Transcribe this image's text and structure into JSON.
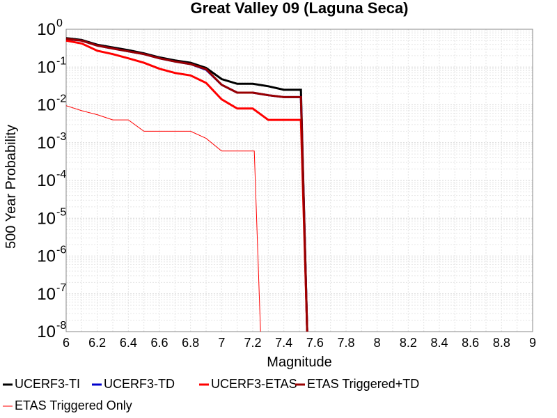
{
  "chart_data": {
    "type": "line",
    "title": "Great Valley 09 (Laguna Seca)",
    "xlabel": "Magnitude",
    "ylabel": "500 Year Probability",
    "xlim": [
      6,
      9
    ],
    "ylim": [
      1e-08,
      1
    ],
    "yscale": "log",
    "grid": true,
    "legend_position": "bottom",
    "x_ticks": [
      "6",
      "6.2",
      "6.4",
      "6.6",
      "6.8",
      "7",
      "7.2",
      "7.4",
      "7.6",
      "7.8",
      "8",
      "8.2",
      "8.4",
      "8.6",
      "8.8",
      "9"
    ],
    "y_ticks": [
      {
        "base": "10",
        "exp": "0",
        "value": 1
      },
      {
        "base": "10",
        "exp": "-1",
        "value": 0.1
      },
      {
        "base": "10",
        "exp": "-2",
        "value": 0.01
      },
      {
        "base": "10",
        "exp": "-3",
        "value": 0.001
      },
      {
        "base": "10",
        "exp": "-4",
        "value": 0.0001
      },
      {
        "base": "10",
        "exp": "-5",
        "value": 1e-05
      },
      {
        "base": "10",
        "exp": "-6",
        "value": 1e-06
      },
      {
        "base": "10",
        "exp": "-7",
        "value": 1e-07
      },
      {
        "base": "10",
        "exp": "-8",
        "value": 1e-08
      }
    ],
    "series": [
      {
        "name": "UCERF3-TI",
        "color": "#000000",
        "width": 3,
        "x": [
          6.0,
          6.1,
          6.2,
          6.3,
          6.4,
          6.5,
          6.6,
          6.7,
          6.8,
          6.9,
          7.0,
          7.1,
          7.2,
          7.3,
          7.4,
          7.5,
          7.51,
          7.55
        ],
        "y": [
          0.58,
          0.52,
          0.39,
          0.33,
          0.28,
          0.23,
          0.18,
          0.15,
          0.13,
          0.095,
          0.048,
          0.036,
          0.036,
          0.031,
          0.025,
          0.025,
          0.025,
          1e-08
        ]
      },
      {
        "name": "UCERF3-TD",
        "color": "#0000cc",
        "width": 3,
        "x": [
          6.0,
          6.1,
          6.2,
          6.3,
          6.4,
          6.5,
          6.6,
          6.7,
          6.8,
          6.9,
          7.0,
          7.1,
          7.2,
          7.3,
          7.4,
          7.5,
          7.51,
          7.55
        ],
        "y": [
          0.55,
          0.5,
          0.37,
          0.31,
          0.26,
          0.22,
          0.17,
          0.14,
          0.12,
          0.085,
          0.034,
          0.021,
          0.021,
          0.018,
          0.016,
          0.016,
          0.016,
          1e-08
        ]
      },
      {
        "name": "UCERF3-ETAS",
        "color": "#ff0000",
        "width": 3,
        "x": [
          6.0,
          6.1,
          6.2,
          6.3,
          6.4,
          6.5,
          6.6,
          6.7,
          6.8,
          6.9,
          7.0,
          7.1,
          7.2,
          7.3,
          7.4,
          7.5,
          7.51,
          7.55
        ],
        "y": [
          0.5,
          0.42,
          0.27,
          0.22,
          0.17,
          0.13,
          0.09,
          0.07,
          0.06,
          0.038,
          0.014,
          0.008,
          0.008,
          0.004,
          0.004,
          0.004,
          0.004,
          1e-08
        ]
      },
      {
        "name": "ETAS Triggered+TD",
        "color": "#990000",
        "width": 3,
        "x": [
          6.0,
          6.1,
          6.2,
          6.3,
          6.4,
          6.5,
          6.6,
          6.7,
          6.8,
          6.9,
          7.0,
          7.1,
          7.2,
          7.3,
          7.4,
          7.5,
          7.51,
          7.55
        ],
        "y": [
          0.56,
          0.5,
          0.37,
          0.31,
          0.26,
          0.22,
          0.17,
          0.14,
          0.12,
          0.088,
          0.034,
          0.021,
          0.021,
          0.018,
          0.016,
          0.016,
          0.016,
          1e-08
        ]
      },
      {
        "name": "ETAS Triggered Only",
        "color": "#ff0000",
        "width": 1,
        "x": [
          6.0,
          6.1,
          6.2,
          6.3,
          6.4,
          6.5,
          6.6,
          6.7,
          6.8,
          6.9,
          7.0,
          7.1,
          7.2,
          7.21,
          7.25
        ],
        "y": [
          0.0095,
          0.007,
          0.0055,
          0.004,
          0.004,
          0.002,
          0.002,
          0.002,
          0.002,
          0.0013,
          0.0006,
          0.0006,
          0.0006,
          0.0006,
          1e-08
        ]
      }
    ]
  }
}
